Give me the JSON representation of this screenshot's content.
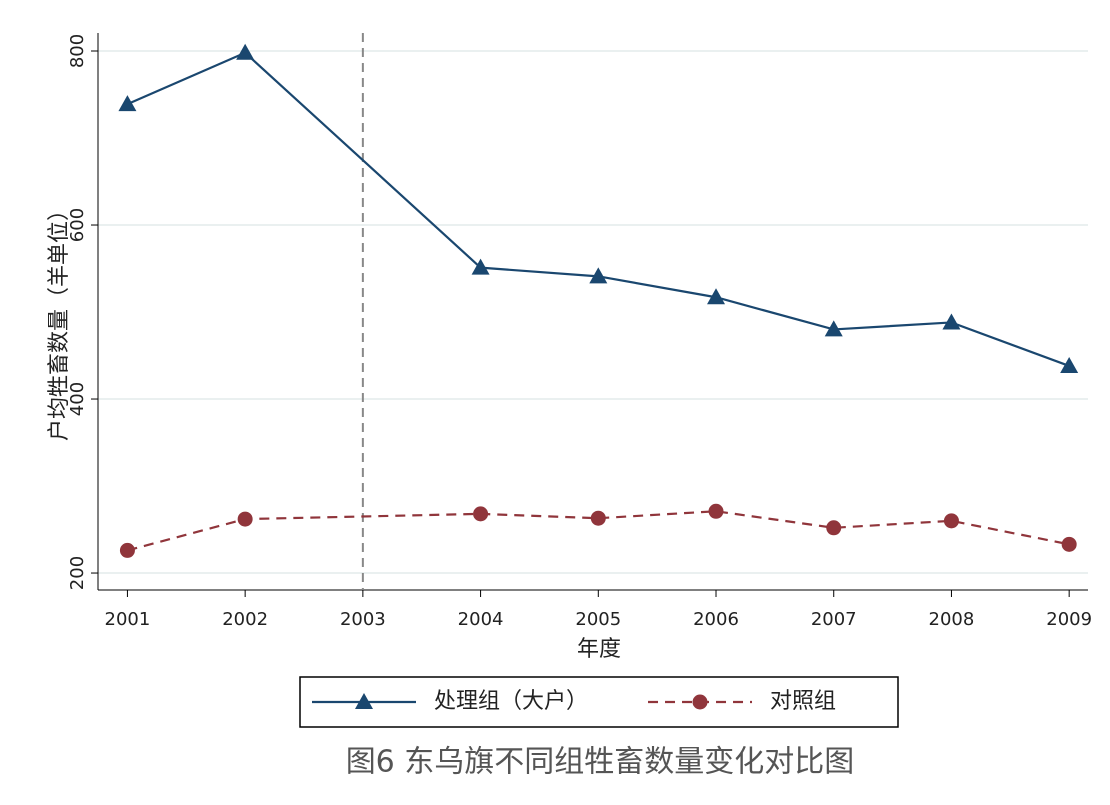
{
  "chart_data": {
    "type": "line",
    "caption": "图6  东乌旗不同组牲畜数量变化对比图",
    "x_label": "年度",
    "y_label": "户均牲畜数量（羊单位）",
    "x": [
      2001,
      2002,
      2004,
      2005,
      2006,
      2007,
      2008,
      2009
    ],
    "series": [
      {
        "name": "处理组（大户）",
        "color": "#1a476f",
        "marker": "triangle",
        "dash": false,
        "values": [
          739,
          798,
          551,
          541,
          517,
          480,
          488,
          438
        ]
      },
      {
        "name": "对照组",
        "color": "#90353b",
        "marker": "circle",
        "dash": true,
        "values": [
          226,
          262,
          268,
          263,
          271,
          252,
          260,
          233
        ]
      }
    ],
    "xlim": [
      2000.75,
      2009.16
    ],
    "xticks": [
      2001,
      2002,
      2003,
      2004,
      2005,
      2006,
      2007,
      2008,
      2009
    ],
    "ylim": [
      180.5,
      820.7
    ],
    "yticks": [
      200,
      400,
      600,
      800
    ],
    "vline": 2003,
    "grid": true,
    "legend": "bottom"
  }
}
